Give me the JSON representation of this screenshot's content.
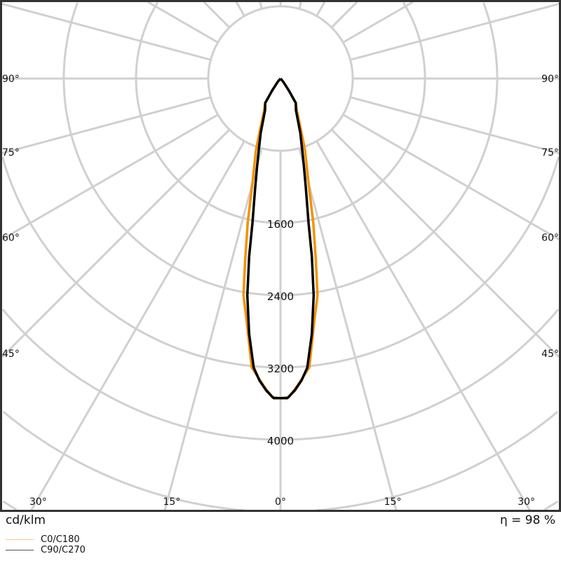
{
  "chart_data": {
    "type": "polar",
    "unit_label": "cd/klm",
    "efficiency_label": "η = 98 %",
    "radial_ticks": [
      800,
      1600,
      2400,
      3200,
      4000,
      4800,
      5600,
      6400,
      7200
    ],
    "radial_tick_labels": [
      "1600",
      "2400",
      "3200",
      "4000"
    ],
    "radial_labeled_values": [
      1600,
      2400,
      3200,
      4000
    ],
    "angle_step_deg": 15,
    "angle_labels": {
      "left": [
        "90°",
        "75°",
        "60°",
        "45°",
        "30°",
        "15°"
      ],
      "center": "0°",
      "right": [
        "15°",
        "30°",
        "45°",
        "60°",
        "75°",
        "90°"
      ]
    },
    "angle_label_values": [
      90,
      75,
      60,
      45,
      30,
      15
    ],
    "grid": true,
    "legend_placement": "bottom-left",
    "series": [
      {
        "name": "C0/C180",
        "color": "#f39200",
        "gamma_deg": [
          0,
          1.5,
          3,
          5.7,
          8,
          9.7,
          11,
          12.8,
          15,
          18.8,
          22,
          27,
          32,
          35,
          40,
          90
        ],
        "intensity": [
          3540,
          3530,
          3420,
          3215,
          2700,
          2435,
          2050,
          1640,
          1200,
          845,
          600,
          400,
          320,
          160,
          50,
          0
        ]
      },
      {
        "name": "C90/C270",
        "color": "#000000",
        "gamma_deg": [
          0,
          1.25,
          2.6,
          4,
          5.3,
          7,
          8.7,
          10,
          11,
          13,
          15,
          16.8,
          20,
          26,
          32,
          35,
          40,
          90
        ],
        "intensity": [
          3540,
          3540,
          3460,
          3350,
          3215,
          2850,
          2430,
          2000,
          1630,
          1250,
          1000,
          835,
          640,
          390,
          320,
          160,
          50,
          0
        ]
      }
    ]
  }
}
